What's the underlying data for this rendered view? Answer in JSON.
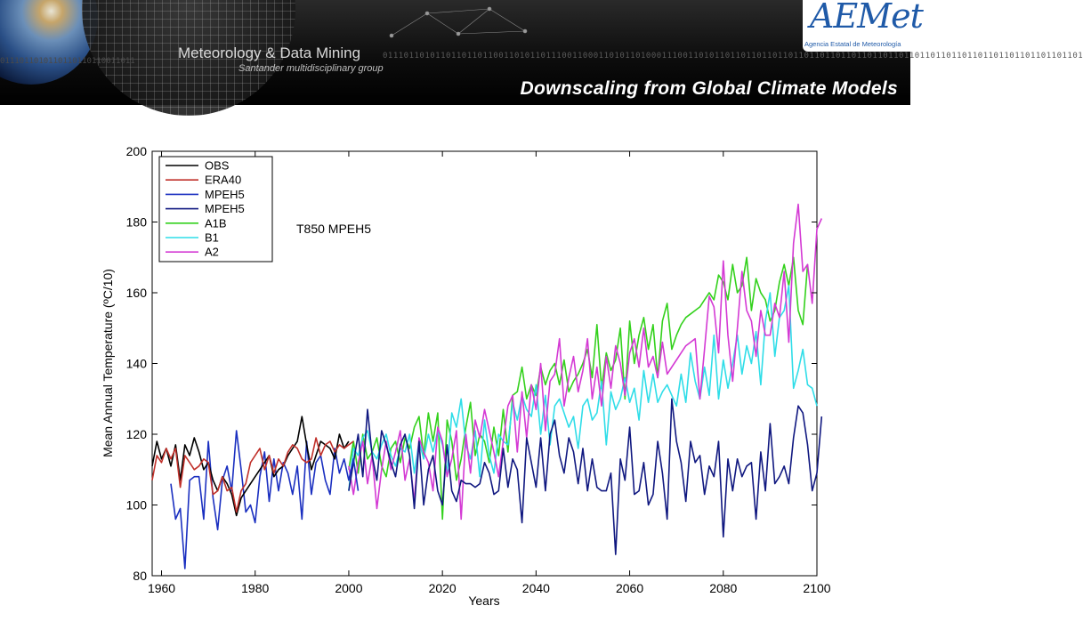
{
  "banner": {
    "group_name": "Meteorology & Data Mining",
    "group_subtitle": "Santander multidisciplinary group",
    "title": "Downscaling from Global Climate Models",
    "binary_text": "0111011010110110110110011010110111001100011010110100011100110101101101101101101101101101101101101101101101101101101101101101101101101",
    "binary_left": "0111011010110110110110011011",
    "logo_word": "AEMet",
    "logo_sub": "Agencia Estatal de Meteorología"
  },
  "colors": {
    "OBS": "#000000",
    "ERA40": "#c0302a",
    "MPEH5": "#1a2fc0",
    "MPEH5b": "#101880",
    "A1B": "#33d11c",
    "B1": "#2fdde8",
    "A2": "#d43ad4",
    "logo": "#1f5aa8"
  },
  "chart_data": {
    "type": "line",
    "annotation": "T850 MPEH5",
    "xlabel": "Years",
    "ylabel": "Mean Annual Temperature (ºC/10)",
    "xlim": [
      1958,
      2100
    ],
    "ylim": [
      80,
      200
    ],
    "xticks": [
      "1960",
      "1980",
      "2000",
      "2020",
      "2040",
      "2060",
      "2080",
      "2100"
    ],
    "yticks": [
      "80",
      "100",
      "120",
      "140",
      "160",
      "180",
      "200"
    ],
    "legend_position": "top-left",
    "series": [
      {
        "name": "OBS",
        "color_key": "OBS",
        "x_start": 1958,
        "values": [
          111,
          118,
          113,
          116,
          111,
          117,
          107,
          117,
          114,
          119,
          115,
          110,
          112,
          107,
          104,
          108,
          106,
          103,
          97,
          102,
          104,
          106,
          108,
          110,
          112,
          114,
          108,
          110,
          111,
          114,
          116,
          118,
          125,
          117,
          110,
          114,
          118,
          117,
          116,
          113,
          120,
          116,
          118
        ]
      },
      {
        "name": "ERA40",
        "color_key": "ERA40",
        "x_start": 1958,
        "values": [
          107,
          114,
          112,
          116,
          113,
          116,
          105,
          114,
          112,
          110,
          111,
          113,
          112,
          103,
          104,
          108,
          104,
          105,
          98,
          104,
          106,
          112,
          114,
          116,
          110,
          114,
          109,
          113,
          111,
          115,
          117,
          116,
          113,
          112,
          113,
          119,
          114,
          117,
          118,
          115,
          117,
          116,
          117,
          118
        ]
      },
      {
        "name": "MPEH5",
        "color_key": "MPEH5",
        "x_start": 1962,
        "values": [
          106,
          96,
          99,
          82,
          107,
          108,
          108,
          96,
          118,
          102,
          93,
          107,
          111,
          104,
          121,
          110,
          98,
          100,
          95,
          108,
          115,
          101,
          113,
          104,
          112,
          109,
          103,
          111,
          96,
          118,
          103,
          112,
          114,
          107,
          103,
          116,
          109,
          113,
          107,
          113,
          104
        ]
      },
      {
        "name": "MPEH5",
        "color_key": "MPEH5b",
        "x_start": 2000,
        "values": [
          104,
          112,
          120,
          108,
          127,
          114,
          107,
          121,
          117,
          112,
          108,
          117,
          120,
          114,
          99,
          118,
          100,
          110,
          114,
          104,
          100,
          117,
          104,
          101,
          107,
          106,
          106,
          105,
          106,
          112,
          109,
          103,
          104,
          116,
          105,
          113,
          110,
          95,
          119,
          112,
          105,
          119,
          104,
          120,
          124,
          114,
          109,
          119,
          115,
          106,
          116,
          104,
          113,
          105,
          104,
          104,
          109,
          86,
          113,
          107,
          122,
          103,
          104,
          112,
          100,
          103,
          118,
          109,
          96,
          130,
          118,
          112,
          101,
          118,
          112,
          114,
          103,
          111,
          108,
          118,
          91,
          113,
          104,
          113,
          108,
          111,
          112,
          96,
          115,
          104,
          123,
          106,
          108,
          111,
          106,
          119,
          128,
          126,
          117,
          104,
          109,
          125
        ]
      },
      {
        "name": "A1B",
        "color_key": "A1B",
        "x_start": 2000,
        "values": [
          110,
          118,
          109,
          120,
          113,
          115,
          119,
          111,
          108,
          116,
          118,
          112,
          119,
          116,
          122,
          125,
          114,
          126,
          118,
          126,
          96,
          124,
          118,
          107,
          113,
          122,
          129,
          114,
          120,
          118,
          112,
          122,
          114,
          127,
          115,
          131,
          132,
          139,
          130,
          134,
          131,
          139,
          134,
          138,
          140,
          134,
          141,
          132,
          135,
          137,
          140,
          144,
          136,
          151,
          133,
          143,
          138,
          141,
          150,
          130,
          152,
          140,
          148,
          153,
          144,
          151,
          136,
          152,
          157,
          144,
          148,
          151,
          153,
          154,
          155,
          156,
          158,
          160,
          158,
          165,
          163,
          158,
          168,
          160,
          162,
          170,
          155,
          164,
          160,
          158,
          152,
          155,
          163,
          168,
          162,
          170,
          155,
          151,
          168
        ]
      },
      {
        "name": "B1",
        "color_key": "B1",
        "x_start": 2000,
        "values": [
          104,
          116,
          114,
          119,
          121,
          115,
          113,
          117,
          120,
          114,
          111,
          116,
          115,
          120,
          109,
          118,
          113,
          120,
          115,
          121,
          117,
          109,
          126,
          122,
          130,
          117,
          113,
          121,
          108,
          124,
          114,
          109,
          120,
          118,
          117,
          129,
          124,
          131,
          127,
          125,
          134,
          120,
          131,
          117,
          128,
          130,
          126,
          122,
          125,
          116,
          128,
          130,
          124,
          126,
          135,
          117,
          132,
          127,
          130,
          136,
          129,
          133,
          124,
          138,
          129,
          137,
          129,
          132,
          134,
          131,
          128,
          137,
          129,
          143,
          135,
          130,
          139,
          131,
          148,
          130,
          141,
          133,
          140,
          148,
          137,
          145,
          140,
          149,
          134,
          152,
          160,
          142,
          153,
          155,
          162,
          133,
          138,
          144,
          134,
          133,
          128
        ]
      },
      {
        "name": "A2",
        "color_key": "A2",
        "x_start": 2000,
        "values": [
          111,
          103,
          112,
          118,
          106,
          114,
          99,
          110,
          118,
          110,
          115,
          121,
          107,
          113,
          101,
          119,
          115,
          112,
          104,
          122,
          118,
          108,
          113,
          121,
          96,
          120,
          109,
          124,
          119,
          127,
          121,
          115,
          108,
          118,
          128,
          131,
          115,
          132,
          119,
          134,
          127,
          140,
          121,
          135,
          137,
          147,
          128,
          136,
          142,
          132,
          138,
          147,
          130,
          139,
          128,
          142,
          133,
          145,
          140,
          131,
          143,
          147,
          139,
          150,
          139,
          142,
          136,
          146,
          137,
          139,
          141,
          143,
          145,
          146,
          147,
          130,
          144,
          159,
          156,
          143,
          169,
          148,
          135,
          150,
          166,
          155,
          152,
          142,
          155,
          148,
          148,
          157,
          153,
          166,
          146,
          174,
          185,
          166,
          168,
          157,
          178,
          181
        ]
      }
    ]
  }
}
